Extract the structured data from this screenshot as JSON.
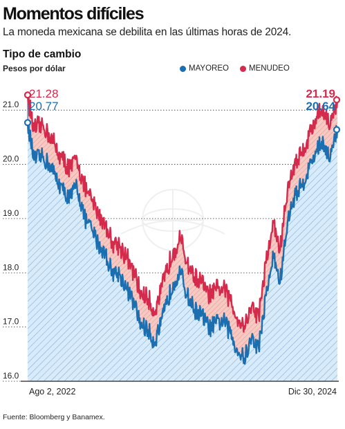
{
  "header": {
    "title": "Momentos difíciles",
    "subtitle": "La moneda mexicana se debilita en las últimas horas de 2024."
  },
  "source": "Fuente: Bloomberg y Banamex.",
  "legend": [
    {
      "label": "MAYOREO",
      "color": "#1b6fb0"
    },
    {
      "label": "MENUDEO",
      "color": "#d42a4c"
    }
  ],
  "callouts": {
    "start_menudeo": "21.28",
    "start_mayoreo": "20.77",
    "end_menudeo": "21.19",
    "end_mayoreo": "20.64"
  },
  "colors": {
    "mayoreo": "#1b6fb0",
    "menudeo": "#d42a4c",
    "area_fill": "#d8ebfa",
    "spread_fill": "#f6c9c2",
    "hatch": "#7fa9cf"
  },
  "chart_data": {
    "type": "line",
    "title": "Tipo de cambio",
    "ylabel": "Pesos por dólar",
    "x_tick_labels": [
      "Ago 2, 2022",
      "Dic 30, 2024"
    ],
    "y_ticks": [
      "16.0",
      "17.0",
      "18.0",
      "19.0",
      "20.0",
      "21.0"
    ],
    "ylim": [
      16.0,
      21.5
    ],
    "x_range": [
      "2022-08-02",
      "2024-12-30"
    ],
    "grid": true,
    "legend_position": "top-right",
    "dates": [
      "2022-08-02",
      "2022-08-20",
      "2022-09-10",
      "2022-10-01",
      "2022-10-20",
      "2022-11-10",
      "2022-12-01",
      "2022-12-20",
      "2023-01-10",
      "2023-02-01",
      "2023-02-20",
      "2023-03-10",
      "2023-03-30",
      "2023-04-20",
      "2023-05-10",
      "2023-06-01",
      "2023-06-20",
      "2023-07-10",
      "2023-07-28",
      "2023-08-15",
      "2023-09-01",
      "2023-09-20",
      "2023-10-10",
      "2023-10-30",
      "2023-11-20",
      "2023-12-10",
      "2024-01-01",
      "2024-01-20",
      "2024-02-10",
      "2024-03-01",
      "2024-03-20",
      "2024-04-09",
      "2024-04-30",
      "2024-05-20",
      "2024-06-10",
      "2024-07-01",
      "2024-07-20",
      "2024-08-10",
      "2024-08-30",
      "2024-09-20",
      "2024-10-10",
      "2024-11-01",
      "2024-11-20",
      "2024-12-10",
      "2024-12-30"
    ],
    "series": [
      {
        "name": "MAYOREO",
        "values": [
          20.77,
          20.08,
          20.14,
          20.02,
          19.78,
          19.52,
          19.38,
          19.62,
          19.02,
          18.78,
          18.52,
          18.37,
          18.02,
          17.98,
          17.72,
          17.42,
          17.05,
          16.95,
          16.72,
          17.02,
          17.42,
          17.82,
          18.02,
          17.58,
          17.32,
          17.22,
          16.98,
          17.07,
          17.12,
          16.88,
          16.58,
          16.42,
          16.78,
          16.62,
          17.58,
          18.32,
          17.82,
          18.92,
          19.42,
          19.62,
          19.92,
          20.28,
          20.42,
          20.12,
          20.64
        ]
      },
      {
        "name": "MENUDEO",
        "values": [
          21.28,
          20.62,
          20.72,
          20.58,
          20.32,
          20.08,
          19.92,
          20.12,
          19.58,
          19.32,
          19.08,
          18.92,
          18.58,
          18.52,
          18.28,
          17.98,
          17.62,
          17.52,
          17.28,
          17.62,
          18.02,
          18.42,
          18.62,
          18.18,
          17.92,
          17.82,
          17.58,
          17.67,
          17.72,
          17.48,
          17.18,
          17.02,
          17.38,
          17.22,
          18.18,
          18.92,
          18.42,
          19.52,
          20.02,
          20.22,
          20.52,
          20.88,
          21.02,
          20.72,
          21.19
        ]
      }
    ]
  }
}
